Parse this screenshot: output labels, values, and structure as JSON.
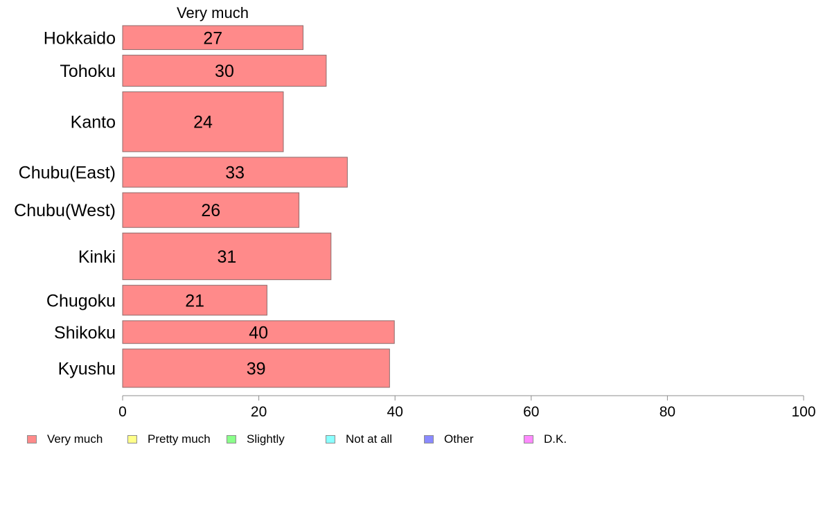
{
  "chart_data": {
    "type": "bar",
    "orientation": "horizontal",
    "title": "",
    "panel_label": "Very much",
    "categories": [
      "Hokkaido",
      "Tohoku",
      "Kanto",
      "Chubu(East)",
      "Chubu(West)",
      "Kinki",
      "Chugoku",
      "Shikoku",
      "Kyushu"
    ],
    "series": [
      {
        "name": "Very much",
        "values": [
          26.5,
          29.9,
          23.6,
          33.0,
          25.9,
          30.6,
          21.2,
          39.9,
          39.2
        ],
        "labels": [
          "27",
          "30",
          "24",
          "33",
          "26",
          "31",
          "21",
          "40",
          "39"
        ]
      }
    ],
    "relative_widths": [
      1.0,
      1.3,
      2.5,
      1.25,
      1.45,
      1.95,
      1.25,
      0.95,
      1.6
    ],
    "xlim": [
      0,
      100
    ],
    "xticks": [
      "0",
      "20",
      "40",
      "60",
      "80",
      "100"
    ],
    "xlabel": "",
    "ylabel": "",
    "grid": false,
    "legend": {
      "position": "bottom",
      "entries": [
        {
          "label": "Very much",
          "color": "#ff8a8a"
        },
        {
          "label": "Pretty much",
          "color": "#ffff8a"
        },
        {
          "label": "Slightly",
          "color": "#8aff8a"
        },
        {
          "label": "Not at all",
          "color": "#8affff"
        },
        {
          "label": "Other",
          "color": "#8a8aff"
        },
        {
          "label": "D.K.",
          "color": "#ff8aff"
        }
      ]
    },
    "bar_color": "#ff8a8a",
    "bar_edge_color": "#8c6b6b",
    "axis_color": "#8c8c8c"
  }
}
